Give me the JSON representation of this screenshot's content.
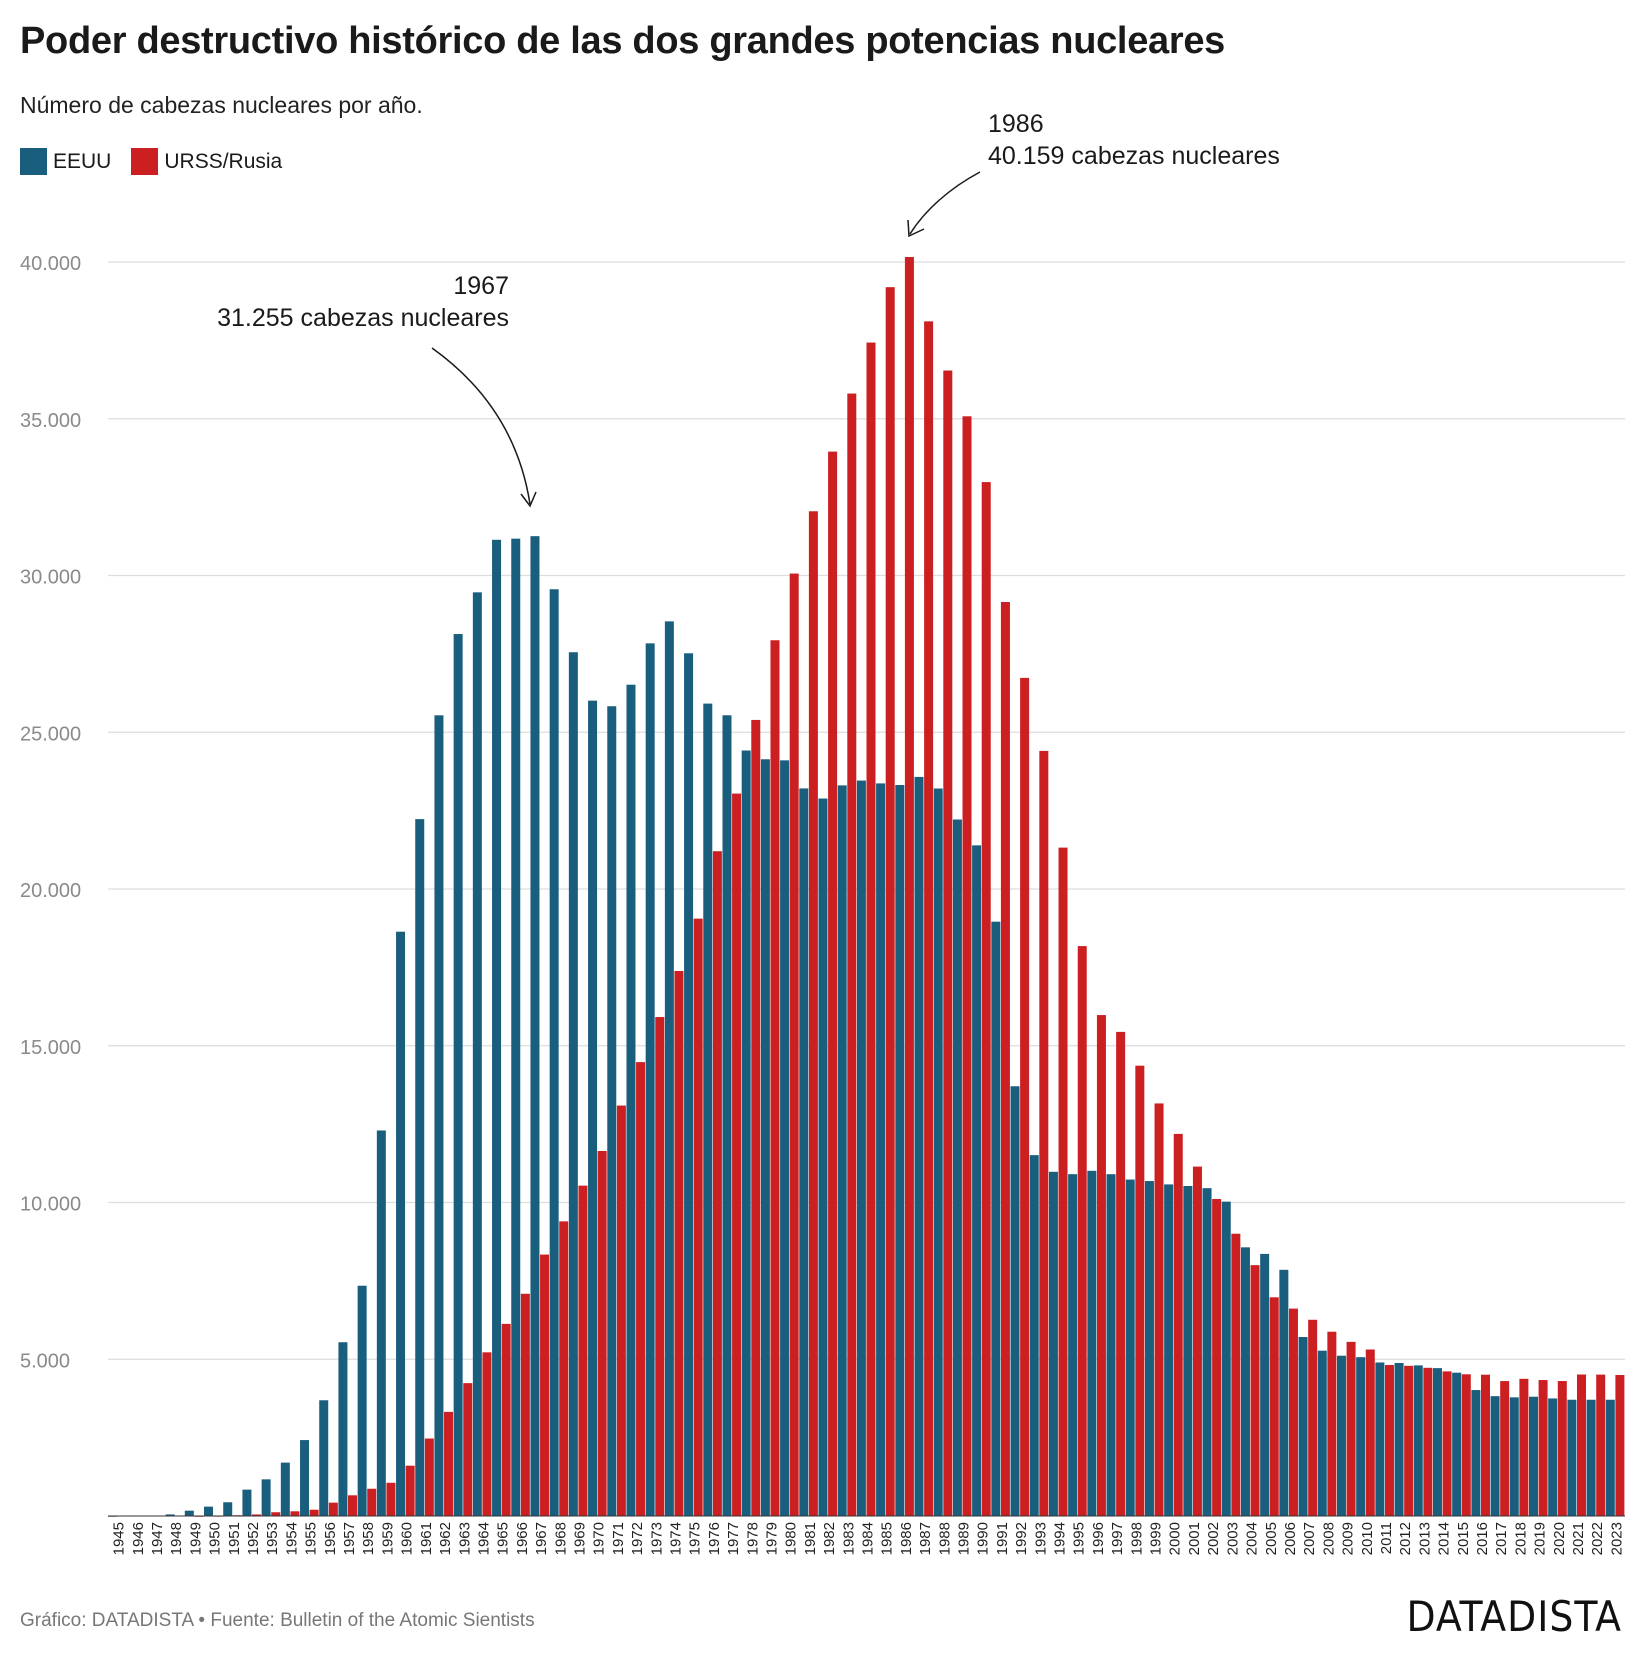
{
  "header": {
    "title": "Poder destructivo histórico de las dos grandes potencias nucleares",
    "subtitle": "Número de cabezas nucleares por año."
  },
  "legend": {
    "items": [
      {
        "label": "EEUU",
        "color": "#1a5e7d"
      },
      {
        "label": "URSS/Rusia",
        "color": "#cb1f22"
      }
    ]
  },
  "annotations": {
    "peak_us": {
      "year": "1967",
      "text": "31.255 cabezas nucleares"
    },
    "peak_ussr": {
      "year": "1986",
      "text": "40.159 cabezas nucleares"
    }
  },
  "footer": {
    "source": "Gráfico: DATADISTA • Fuente: Bulletin of the Atomic Sientists",
    "brand": "DATADISTA"
  },
  "chart_data": {
    "type": "bar",
    "grid": true,
    "ylim": [
      0,
      40000
    ],
    "yticks": [
      {
        "value": 5000,
        "label": "5.000"
      },
      {
        "value": 10000,
        "label": "10.000"
      },
      {
        "value": 15000,
        "label": "15.000"
      },
      {
        "value": 20000,
        "label": "20.000"
      },
      {
        "value": 25000,
        "label": "25.000"
      },
      {
        "value": 30000,
        "label": "30.000"
      },
      {
        "value": 35000,
        "label": "35.000"
      },
      {
        "value": 40000,
        "label": "40.000"
      }
    ],
    "categories": [
      "1945",
      "1946",
      "1947",
      "1948",
      "1949",
      "1950",
      "1951",
      "1952",
      "1953",
      "1954",
      "1955",
      "1956",
      "1957",
      "1958",
      "1959",
      "1960",
      "1961",
      "1962",
      "1963",
      "1964",
      "1965",
      "1966",
      "1967",
      "1968",
      "1969",
      "1970",
      "1971",
      "1972",
      "1973",
      "1974",
      "1975",
      "1976",
      "1977",
      "1978",
      "1979",
      "1980",
      "1981",
      "1982",
      "1983",
      "1984",
      "1985",
      "1986",
      "1987",
      "1988",
      "1989",
      "1990",
      "1991",
      "1992",
      "1993",
      "1994",
      "1995",
      "1996",
      "1997",
      "1998",
      "1999",
      "2000",
      "2001",
      "2002",
      "2003",
      "2004",
      "2005",
      "2006",
      "2007",
      "2008",
      "2009",
      "2010",
      "2011",
      "2012",
      "2013",
      "2014",
      "2015",
      "2016",
      "2017",
      "2018",
      "2019",
      "2020",
      "2021",
      "2022",
      "2023"
    ],
    "series": [
      {
        "name": "EEUU",
        "color": "#1a5e7d",
        "values": [
          2,
          9,
          13,
          50,
          170,
          299,
          438,
          841,
          1169,
          1703,
          2422,
          3692,
          5543,
          7345,
          12298,
          18638,
          22229,
          25540,
          28133,
          29463,
          31139,
          31175,
          31255,
          29561,
          27552,
          26008,
          25830,
          26516,
          27835,
          28537,
          27519,
          25914,
          25542,
          24418,
          24138,
          24104,
          23208,
          22886,
          23305,
          23459,
          23368,
          23317,
          23575,
          23205,
          22217,
          21392,
          18958,
          13708,
          11511,
          10979,
          10904,
          11011,
          10903,
          10732,
          10685,
          10577,
          10526,
          10457,
          10027,
          8570,
          8360,
          7853,
          5709,
          5273,
          5113,
          5066,
          4897,
          4881,
          4804,
          4717,
          4571,
          4018,
          3822,
          3785,
          3805,
          3750,
          3708,
          3708,
          3708
        ]
      },
      {
        "name": "URSS/Rusia",
        "color": "#cb1f22",
        "values": [
          0,
          0,
          0,
          0,
          1,
          5,
          25,
          50,
          120,
          150,
          200,
          426,
          660,
          869,
          1060,
          1605,
          2471,
          3322,
          4238,
          5221,
          6129,
          7089,
          8339,
          9399,
          10538,
          11643,
          13092,
          14478,
          15915,
          17385,
          19055,
          21205,
          23044,
          25393,
          27935,
          30062,
          32049,
          33952,
          35804,
          37431,
          39197,
          40159,
          38107,
          36538,
          35078,
          32980,
          29154,
          26734,
          24405,
          21320,
          18179,
          15979,
          15442,
          14364,
          13160,
          12188,
          11145,
          10111,
          9004,
          8001,
          6976,
          6616,
          6259,
          5878,
          5554,
          5311,
          4817,
          4790,
          4727,
          4613,
          4520,
          4507,
          4304,
          4376,
          4337,
          4305,
          4513,
          4510,
          4498
        ]
      }
    ]
  }
}
